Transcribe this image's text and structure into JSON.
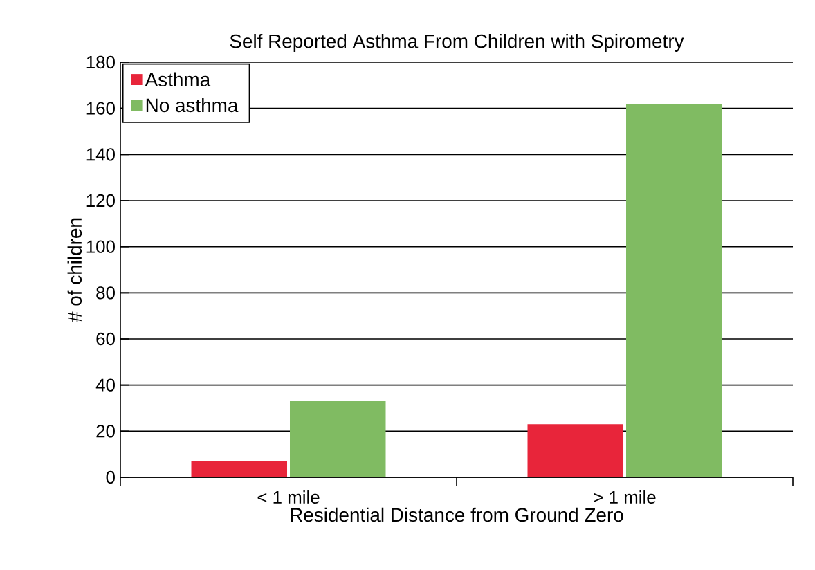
{
  "chart_data": {
    "type": "bar",
    "title": "Self Reported Asthma From Children with Spirometry",
    "xlabel": "Residential Distance from Ground Zero",
    "ylabel": "# of children",
    "categories": [
      "< 1 mile",
      "> 1 mile"
    ],
    "series": [
      {
        "name": "Asthma",
        "color": "#e8253a",
        "values": [
          7,
          23
        ]
      },
      {
        "name": "No asthma",
        "color": "#80bb62",
        "values": [
          33,
          162
        ]
      }
    ],
    "ylim": [
      0,
      180
    ],
    "yticks": [
      0,
      20,
      40,
      60,
      80,
      100,
      120,
      140,
      160,
      180
    ],
    "grid": "y",
    "legend": "top left"
  }
}
